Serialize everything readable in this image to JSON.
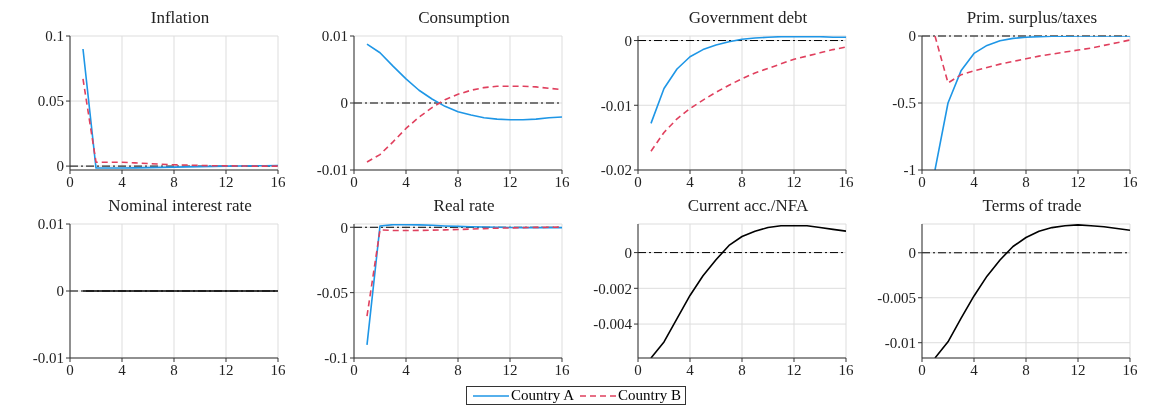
{
  "chart_data": [
    {
      "type": "line",
      "title": "Inflation",
      "x": [
        1,
        2,
        3,
        4,
        5,
        6,
        7,
        8,
        9,
        10,
        11,
        12,
        13,
        14,
        15,
        16
      ],
      "xlim": [
        0,
        16
      ],
      "xticks": [
        0,
        4,
        8,
        12,
        16
      ],
      "ylim": [
        -0.003,
        0.1
      ],
      "yticks": [
        0,
        0.05,
        0.1
      ],
      "grid": true,
      "legend": "bottom",
      "ref_lines": [
        {
          "axis": "y",
          "value": 0,
          "color": "#000000",
          "line_style": "dashed"
        }
      ],
      "series": [
        {
          "name": "Country A",
          "color": "#1e96e6",
          "line_style": "solid",
          "values": [
            0.09,
            -0.0015,
            -0.0015,
            -0.0015,
            -0.0014,
            -0.0012,
            -0.001,
            -0.0008,
            -0.0006,
            -0.0004,
            -0.0002,
            0,
            0.0001,
            0.0002,
            0.0003,
            0.0004
          ]
        },
        {
          "name": "Country B",
          "color": "#e0405e",
          "line_style": "dashed",
          "values": [
            0.067,
            0.003,
            0.003,
            0.003,
            0.0025,
            0.002,
            0.0015,
            0.001,
            0.0008,
            0.0005,
            0.0003,
            0.0002,
            0.0001,
            0,
            0,
            0
          ]
        }
      ]
    },
    {
      "type": "line",
      "title": "Consumption",
      "x": [
        1,
        2,
        3,
        4,
        5,
        6,
        7,
        8,
        9,
        10,
        11,
        12,
        13,
        14,
        15,
        16
      ],
      "xlim": [
        0,
        16
      ],
      "xticks": [
        0,
        4,
        8,
        12,
        16
      ],
      "ylim": [
        -0.01,
        0.01
      ],
      "yticks": [
        -0.01,
        0,
        0.01
      ],
      "grid": true,
      "ref_lines": [
        {
          "axis": "y",
          "value": 0,
          "color": "#000000",
          "line_style": "dashed"
        }
      ],
      "series": [
        {
          "color": "#1e96e6",
          "line_style": "solid",
          "values": [
            0.0088,
            0.0075,
            0.0055,
            0.0036,
            0.0019,
            0.0006,
            -0.0005,
            -0.0013,
            -0.0018,
            -0.0022,
            -0.0024,
            -0.0025,
            -0.0025,
            -0.0024,
            -0.0022,
            -0.0021
          ]
        },
        {
          "color": "#e0405e",
          "line_style": "dashed",
          "values": [
            -0.0088,
            -0.0077,
            -0.0058,
            -0.0038,
            -0.0021,
            -0.0007,
            0.0005,
            0.0013,
            0.0019,
            0.0023,
            0.0025,
            0.0025,
            0.0025,
            0.0024,
            0.0022,
            0.002
          ]
        }
      ]
    },
    {
      "type": "line",
      "title": "Government debt",
      "x": [
        1,
        2,
        3,
        4,
        5,
        6,
        7,
        8,
        9,
        10,
        11,
        12,
        13,
        14,
        15,
        16
      ],
      "xlim": [
        0,
        16
      ],
      "xticks": [
        0,
        4,
        8,
        12,
        16
      ],
      "ylim": [
        -0.02,
        0.0007
      ],
      "yticks": [
        -0.02,
        -0.01,
        0
      ],
      "grid": true,
      "ref_lines": [
        {
          "axis": "y",
          "value": 0,
          "color": "#000000",
          "line_style": "dashed"
        }
      ],
      "series": [
        {
          "color": "#1e96e6",
          "line_style": "solid",
          "values": [
            -0.0128,
            -0.0074,
            -0.0044,
            -0.0025,
            -0.0014,
            -0.0007,
            -0.0002,
            0.0002,
            0.0004,
            0.0005,
            0.0006,
            0.0006,
            0.0006,
            0.0006,
            0.0005,
            0.0005
          ]
        },
        {
          "color": "#e0405e",
          "line_style": "dashed",
          "values": [
            -0.0171,
            -0.0142,
            -0.0121,
            -0.0105,
            -0.0092,
            -0.008,
            -0.0069,
            -0.0059,
            -0.005,
            -0.0043,
            -0.0036,
            -0.0029,
            -0.0024,
            -0.0019,
            -0.0014,
            -0.001
          ]
        }
      ]
    },
    {
      "type": "line",
      "title": "Prim. surplus/taxes",
      "x": [
        1,
        2,
        3,
        4,
        5,
        6,
        7,
        8,
        9,
        10,
        11,
        12,
        13,
        14,
        15,
        16
      ],
      "xlim": [
        0,
        16
      ],
      "xticks": [
        0,
        4,
        8,
        12,
        16
      ],
      "ylim": [
        -1,
        0
      ],
      "yticks": [
        -1,
        -0.5,
        0
      ],
      "grid": true,
      "ref_lines": [
        {
          "axis": "y",
          "value": 0,
          "color": "#000000",
          "line_style": "dashed"
        }
      ],
      "series": [
        {
          "color": "#1e96e6",
          "line_style": "solid",
          "values": [
            -1,
            -0.5,
            -0.26,
            -0.13,
            -0.07,
            -0.035,
            -0.018,
            -0.009,
            -0.005,
            -0.002,
            -0.001,
            0,
            0,
            0,
            0,
            0
          ]
        },
        {
          "color": "#e0405e",
          "line_style": "dashed",
          "values": [
            0,
            -0.35,
            -0.29,
            -0.26,
            -0.235,
            -0.21,
            -0.19,
            -0.17,
            -0.15,
            -0.135,
            -0.12,
            -0.105,
            -0.09,
            -0.07,
            -0.05,
            -0.03
          ]
        }
      ]
    },
    {
      "type": "line",
      "title": "Nominal interest rate",
      "x": [
        1,
        2,
        3,
        4,
        5,
        6,
        7,
        8,
        9,
        10,
        11,
        12,
        13,
        14,
        15,
        16
      ],
      "xlim": [
        0,
        16
      ],
      "xticks": [
        0,
        4,
        8,
        12,
        16
      ],
      "ylim": [
        -0.01,
        0.01
      ],
      "yticks": [
        -0.01,
        0,
        0.01
      ],
      "grid": true,
      "ref_lines": [
        {
          "axis": "y",
          "value": 0,
          "color": "#000000",
          "line_style": "dashed"
        }
      ],
      "series": [
        {
          "color": "#000000",
          "line_style": "solid",
          "values": [
            0,
            0,
            0,
            0,
            0,
            0,
            0,
            0,
            0,
            0,
            0,
            0,
            0,
            0,
            0,
            0
          ]
        }
      ]
    },
    {
      "type": "line",
      "title": "Real rate",
      "x": [
        1,
        2,
        3,
        4,
        5,
        6,
        7,
        8,
        9,
        10,
        11,
        12,
        13,
        14,
        15,
        16
      ],
      "xlim": [
        0,
        16
      ],
      "xticks": [
        0,
        4,
        8,
        12,
        16
      ],
      "ylim": [
        -0.1,
        0.0025
      ],
      "yticks": [
        -0.1,
        -0.05,
        0
      ],
      "grid": true,
      "ref_lines": [
        {
          "axis": "y",
          "value": 0,
          "color": "#000000",
          "line_style": "dashed"
        }
      ],
      "series": [
        {
          "color": "#1e96e6",
          "line_style": "solid",
          "values": [
            -0.09,
            0.001,
            0.002,
            0.002,
            0.0018,
            0.0015,
            0.001,
            0.0007,
            0.0004,
            0.0002,
            0,
            -0.0002,
            -0.0003,
            -0.0003,
            -0.0003,
            -0.0003
          ]
        },
        {
          "color": "#e0405e",
          "line_style": "dashed",
          "values": [
            -0.068,
            -0.002,
            -0.0025,
            -0.0025,
            -0.0024,
            -0.0022,
            -0.002,
            -0.0017,
            -0.0014,
            -0.001,
            -0.0007,
            -0.0005,
            -0.0003,
            -0.0001,
            0,
            0.0001
          ]
        }
      ]
    },
    {
      "type": "line",
      "title": "Current acc./NFA",
      "x": [
        1,
        2,
        3,
        4,
        5,
        6,
        7,
        8,
        9,
        10,
        11,
        12,
        13,
        14,
        15,
        16
      ],
      "xlim": [
        0,
        16
      ],
      "xticks": [
        0,
        4,
        8,
        12,
        16
      ],
      "ylim": [
        -0.0059,
        0.0016
      ],
      "yticks": [
        -0.004,
        -0.002,
        0
      ],
      "grid": true,
      "ref_lines": [
        {
          "axis": "y",
          "value": 0,
          "color": "#000000",
          "line_style": "dashed"
        }
      ],
      "series": [
        {
          "color": "#000000",
          "line_style": "solid",
          "values": [
            -0.0059,
            -0.005,
            -0.0037,
            -0.0024,
            -0.0013,
            -0.0004,
            0.0004,
            0.0009,
            0.0012,
            0.0014,
            0.0015,
            0.0015,
            0.0015,
            0.0014,
            0.0013,
            0.0012
          ]
        }
      ]
    },
    {
      "type": "line",
      "title": "Terms of trade",
      "x": [
        1,
        2,
        3,
        4,
        5,
        6,
        7,
        8,
        9,
        10,
        11,
        12,
        13,
        14,
        15,
        16
      ],
      "xlim": [
        0,
        16
      ],
      "xticks": [
        0,
        4,
        8,
        12,
        16
      ],
      "ylim": [
        -0.0117,
        0.0032
      ],
      "yticks": [
        -0.01,
        -0.005,
        0
      ],
      "grid": true,
      "ref_lines": [
        {
          "axis": "y",
          "value": 0,
          "color": "#000000",
          "line_style": "dashed"
        }
      ],
      "series": [
        {
          "color": "#000000",
          "line_style": "solid",
          "values": [
            -0.0117,
            -0.0099,
            -0.0073,
            -0.0048,
            -0.0026,
            -0.0008,
            0.0007,
            0.0017,
            0.0024,
            0.0028,
            0.003,
            0.0031,
            0.003,
            0.0029,
            0.0027,
            0.0025
          ]
        }
      ]
    }
  ]
}
